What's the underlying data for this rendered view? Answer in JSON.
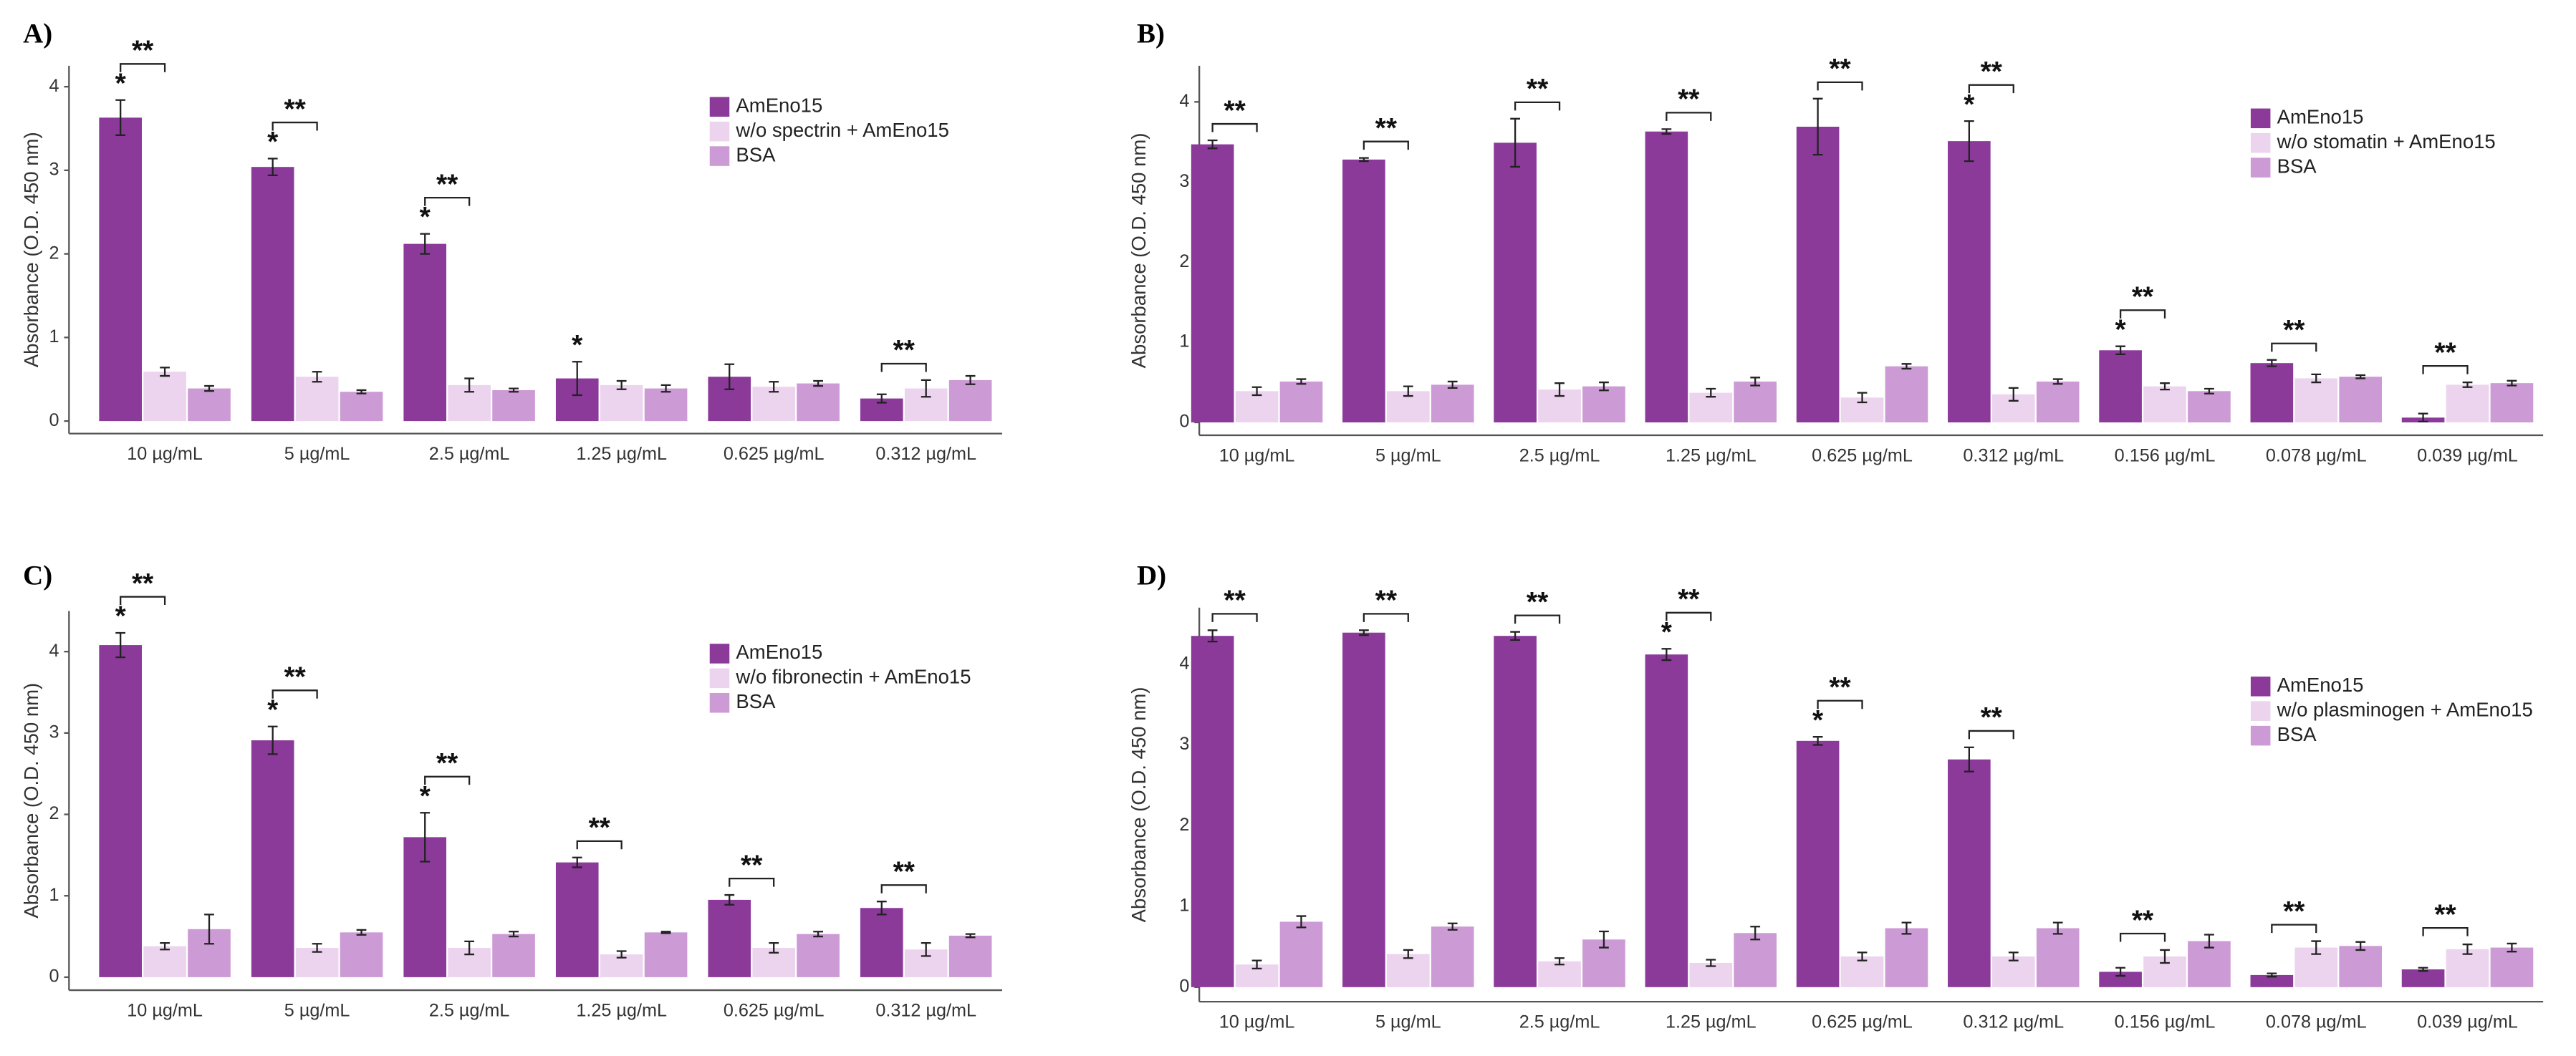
{
  "chart_data": [
    {
      "type": "bar",
      "label": "A)",
      "ylabel": "Absorbance (O.D. 450 nm)",
      "categories": [
        "10 µg/mL",
        "5 µg/mL",
        "2.5 µg/mL",
        "1.25 µg/mL",
        "0.625 µg/mL",
        "0.312 µg/mL"
      ],
      "series": [
        {
          "name": "AmEno15",
          "color": "#8b3a9a",
          "values": [
            3.63,
            3.04,
            2.12,
            0.51,
            0.53,
            0.27
          ],
          "errors": [
            0.21,
            0.1,
            0.12,
            0.2,
            0.15,
            0.05
          ],
          "stars": [
            "*",
            "*",
            "*",
            "*",
            null,
            null
          ]
        },
        {
          "name": "w/o spectrin + AmEno15",
          "color": "#ecd3ee",
          "values": [
            0.59,
            0.53,
            0.43,
            0.43,
            0.41,
            0.39
          ],
          "errors": [
            0.05,
            0.06,
            0.08,
            0.05,
            0.06,
            0.1
          ]
        },
        {
          "name": "BSA",
          "color": "#cc9ad4",
          "values": [
            0.39,
            0.35,
            0.37,
            0.39,
            0.45,
            0.49
          ],
          "errors": [
            0.03,
            0.02,
            0.02,
            0.04,
            0.03,
            0.05
          ]
        }
      ],
      "brackets": [
        "**",
        "**",
        "**",
        null,
        null,
        "**"
      ],
      "ylim": [
        -0.15,
        4.25
      ],
      "yticks": [
        0,
        1,
        2,
        3,
        4
      ],
      "legend": "upper right"
    },
    {
      "type": "bar",
      "label": "B)",
      "ylabel": "Absorbance (O.D. 450 nm)",
      "categories": [
        "10 µg/mL",
        "5 µg/mL",
        "2.5 µg/mL",
        "1.25 µg/mL",
        "0.625 µg/mL",
        "0.312 µg/mL",
        "0.156 µg/mL",
        "0.078 µg/mL",
        "0.039 µg/mL"
      ],
      "series": [
        {
          "name": "AmEno15",
          "color": "#8b3a9a",
          "values": [
            3.47,
            3.28,
            3.49,
            3.63,
            3.69,
            3.51,
            0.9,
            0.74,
            0.06
          ],
          "errors": [
            0.05,
            0.02,
            0.3,
            0.03,
            0.35,
            0.25,
            0.05,
            0.04,
            0.05
          ],
          "stars": [
            null,
            null,
            null,
            null,
            null,
            "*",
            "*",
            null,
            null
          ]
        },
        {
          "name": "w/o stomatin + AmEno15",
          "color": "#ecd3ee",
          "values": [
            0.39,
            0.39,
            0.41,
            0.37,
            0.31,
            0.35,
            0.45,
            0.55,
            0.47
          ],
          "errors": [
            0.05,
            0.06,
            0.08,
            0.05,
            0.06,
            0.08,
            0.04,
            0.05,
            0.03
          ]
        },
        {
          "name": "BSA",
          "color": "#cc9ad4",
          "values": [
            0.51,
            0.47,
            0.45,
            0.51,
            0.7,
            0.51,
            0.39,
            0.57,
            0.49
          ],
          "errors": [
            0.03,
            0.04,
            0.05,
            0.05,
            0.03,
            0.03,
            0.03,
            0.02,
            0.03
          ]
        }
      ],
      "brackets": [
        "**",
        "**",
        "**",
        "**",
        "**",
        "**",
        "**",
        "**",
        "**"
      ],
      "ylim": [
        -0.16,
        4.45
      ],
      "yticks": [
        0,
        1,
        2,
        3,
        4
      ],
      "legend": "upper right"
    },
    {
      "type": "bar",
      "label": "C)",
      "ylabel": "Absorbance (O.D. 450 nm)",
      "categories": [
        "10 µg/mL",
        "5 µg/mL",
        "2.5 µg/mL",
        "1.25 µg/mL",
        "0.625 µg/mL",
        "0.312 µg/mL"
      ],
      "series": [
        {
          "name": "AmEno15",
          "color": "#8b3a9a",
          "values": [
            4.08,
            2.91,
            1.72,
            1.41,
            0.95,
            0.85
          ],
          "errors": [
            0.15,
            0.17,
            0.3,
            0.06,
            0.06,
            0.08
          ],
          "stars": [
            "*",
            "*",
            "*",
            null,
            null,
            null
          ]
        },
        {
          "name": "w/o fibronectin + AmEno15",
          "color": "#ecd3ee",
          "values": [
            0.38,
            0.36,
            0.36,
            0.28,
            0.36,
            0.34
          ],
          "errors": [
            0.04,
            0.05,
            0.08,
            0.04,
            0.06,
            0.08
          ]
        },
        {
          "name": "BSA",
          "color": "#cc9ad4",
          "values": [
            0.59,
            0.55,
            0.53,
            0.55,
            0.53,
            0.51
          ],
          "errors": [
            0.18,
            0.03,
            0.03,
            0.01,
            0.03,
            0.02
          ]
        }
      ],
      "brackets": [
        "**",
        "**",
        "**",
        "**",
        "**",
        "**"
      ],
      "ylim": [
        -0.16,
        4.5
      ],
      "yticks": [
        0,
        1,
        2,
        3,
        4
      ],
      "legend": "upper right"
    },
    {
      "type": "bar",
      "label": "D)",
      "ylabel": "Absorbance (O.D. 450 nm)",
      "categories": [
        "10 µg/mL",
        "5 µg/mL",
        "2.5 µg/mL",
        "1.25 µg/mL",
        "0.625 µg/mL",
        "0.312 µg/mL",
        "0.156 µg/mL",
        "0.078 µg/mL",
        "0.039 µg/mL"
      ],
      "series": [
        {
          "name": "AmEno15",
          "color": "#8b3a9a",
          "values": [
            4.35,
            4.39,
            4.35,
            4.12,
            3.05,
            2.82,
            0.19,
            0.15,
            0.22
          ],
          "errors": [
            0.07,
            0.03,
            0.05,
            0.07,
            0.05,
            0.15,
            0.05,
            0.02,
            0.02
          ],
          "stars": [
            null,
            null,
            null,
            "*",
            "*",
            null,
            null,
            null,
            null
          ]
        },
        {
          "name": "w/o plasminogen + AmEno15",
          "color": "#ecd3ee",
          "values": [
            0.28,
            0.41,
            0.32,
            0.3,
            0.38,
            0.38,
            0.38,
            0.49,
            0.47
          ],
          "errors": [
            0.05,
            0.05,
            0.04,
            0.04,
            0.05,
            0.05,
            0.08,
            0.08,
            0.06
          ]
        },
        {
          "name": "BSA",
          "color": "#cc9ad4",
          "values": [
            0.81,
            0.75,
            0.59,
            0.67,
            0.73,
            0.73,
            0.57,
            0.51,
            0.49
          ],
          "errors": [
            0.07,
            0.04,
            0.1,
            0.08,
            0.07,
            0.07,
            0.08,
            0.05,
            0.05
          ]
        }
      ],
      "brackets": [
        "**",
        "**",
        "**",
        "**",
        "**",
        "**",
        "**",
        "**",
        "**"
      ],
      "ylim": [
        -0.18,
        4.7
      ],
      "yticks": [
        0,
        1,
        2,
        3,
        4
      ],
      "legend": "upper right"
    }
  ]
}
